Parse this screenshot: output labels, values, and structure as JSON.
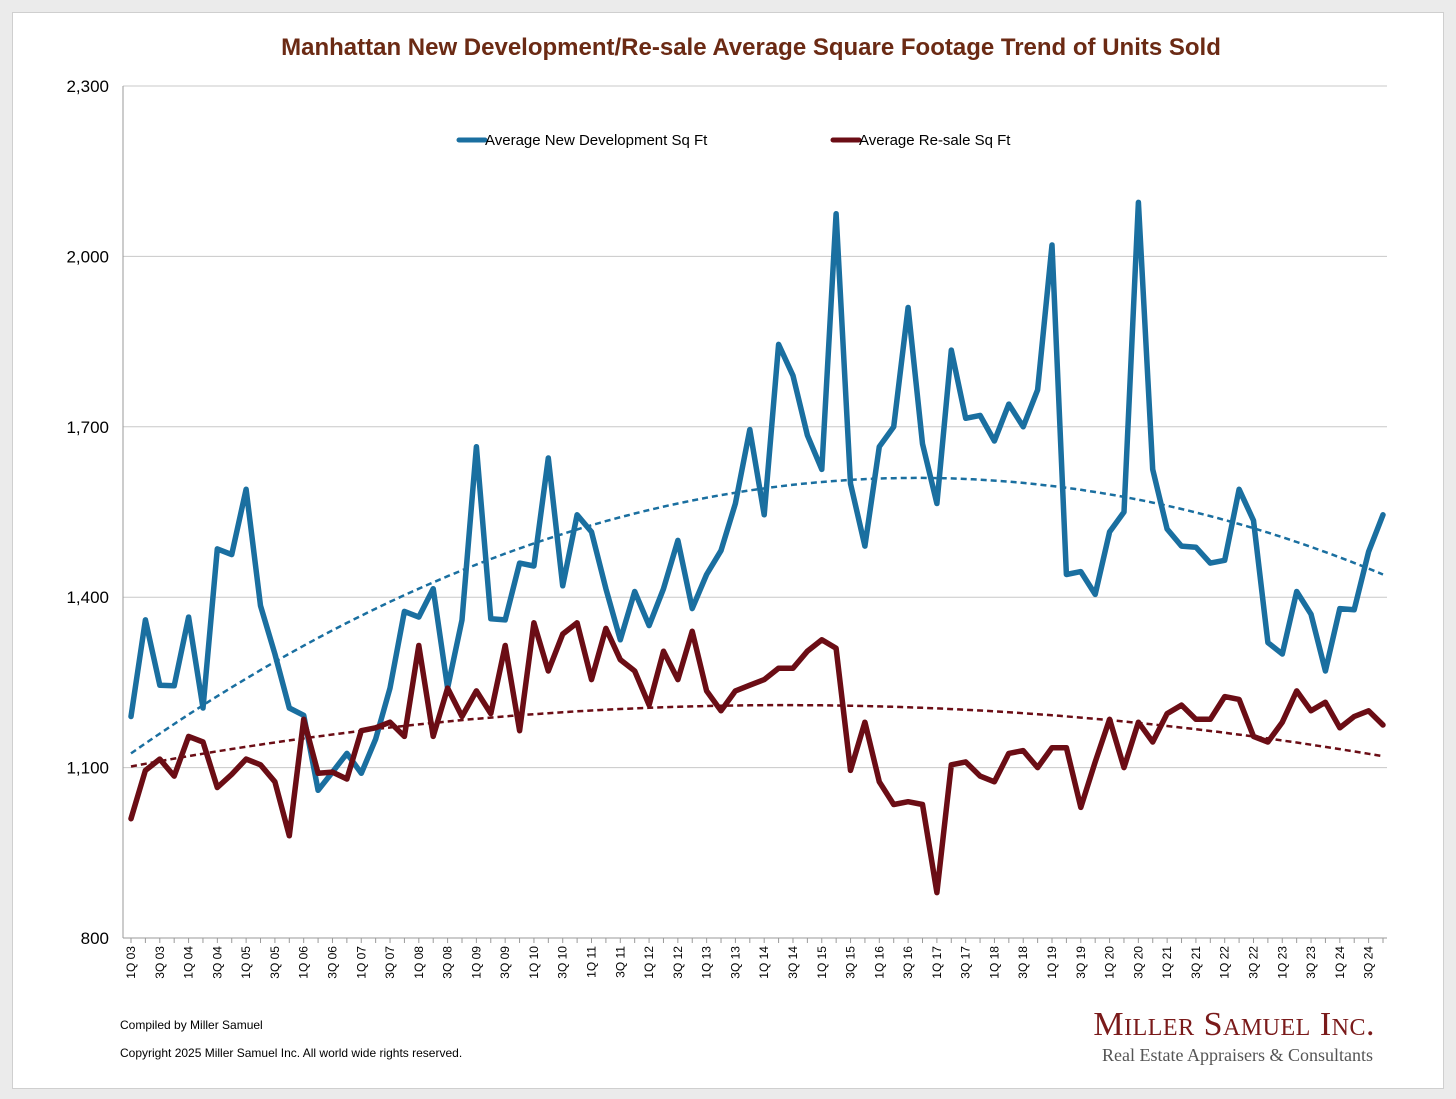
{
  "colors": {
    "new_dev": "#1a6fa0",
    "resale": "#6b0d15",
    "title": "#6b2a14",
    "brand": "#7a1a1a",
    "grid": "#c8c8c8"
  },
  "footer": {
    "compiled": "Compiled by Miller Samuel",
    "copyright": "Copyright 2025 Miller Samuel Inc.  All world wide rights reserved.",
    "brand_name": "Miller Samuel Inc.",
    "brand_tagline": "Real Estate Appraisers & Consultants"
  },
  "chart_data": {
    "type": "line",
    "title": "Manhattan New Development/Re-sale Average Square Footage Trend of Units Sold",
    "xlabel": "",
    "ylabel": "",
    "ylim": [
      800,
      2300
    ],
    "yticks": [
      800,
      1100,
      1400,
      1700,
      2000,
      2300
    ],
    "ytick_labels": [
      "800",
      "1,100",
      "1,400",
      "1,700",
      "2,000",
      "2,300"
    ],
    "grid": "horizontal",
    "legend": "top-center",
    "x": [
      "1Q 03",
      "2Q 03",
      "3Q 03",
      "4Q 03",
      "1Q 04",
      "2Q 04",
      "3Q 04",
      "4Q 04",
      "1Q 05",
      "2Q 05",
      "3Q 05",
      "4Q 05",
      "1Q 06",
      "2Q 06",
      "3Q 06",
      "4Q 06",
      "1Q 07",
      "2Q 07",
      "3Q 07",
      "4Q 07",
      "1Q 08",
      "2Q 08",
      "3Q 08",
      "4Q 08",
      "1Q 09",
      "2Q 09",
      "3Q 09",
      "4Q 09",
      "1Q 10",
      "2Q 10",
      "3Q 10",
      "4Q 10",
      "1Q 11",
      "2Q 11",
      "3Q 11",
      "4Q 11",
      "1Q 12",
      "2Q 12",
      "3Q 12",
      "4Q 12",
      "1Q 13",
      "2Q 13",
      "3Q 13",
      "4Q 13",
      "1Q 14",
      "2Q 14",
      "3Q 14",
      "4Q 14",
      "1Q 15",
      "2Q 15",
      "3Q 15",
      "4Q 15",
      "1Q 16",
      "2Q 16",
      "3Q 16",
      "4Q 16",
      "1Q 17",
      "2Q 17",
      "3Q 17",
      "4Q 17",
      "1Q 18",
      "2Q 18",
      "3Q 18",
      "4Q 18",
      "1Q 19",
      "2Q 19",
      "3Q 19",
      "4Q 19",
      "1Q 20",
      "2Q 20",
      "3Q 20",
      "4Q 20",
      "1Q 21",
      "2Q 21",
      "3Q 21",
      "4Q 21",
      "1Q 22",
      "2Q 22",
      "3Q 22",
      "4Q 22",
      "1Q 23",
      "2Q 23",
      "3Q 23",
      "4Q 23",
      "1Q 24",
      "2Q 24",
      "3Q 24",
      "4Q 24"
    ],
    "tick_labels": [
      "1Q 03",
      "3Q 03",
      "1Q 04",
      "3Q 04",
      "1Q 05",
      "3Q 05",
      "1Q 06",
      "3Q 06",
      "1Q 07",
      "3Q 07",
      "1Q 08",
      "3Q 08",
      "1Q 09",
      "3Q 09",
      "1Q 10",
      "3Q 10",
      "1Q 11",
      "3Q 11",
      "1Q 12",
      "3Q 12",
      "1Q 13",
      "3Q 13",
      "1Q 14",
      "3Q 14",
      "1Q 15",
      "3Q 15",
      "1Q 16",
      "3Q 16",
      "1Q 17",
      "3Q 17",
      "1Q 18",
      "3Q 18",
      "1Q 19",
      "3Q 19",
      "1Q 20",
      "3Q 20",
      "1Q 21",
      "3Q 21",
      "1Q 22",
      "3Q 22",
      "1Q 23",
      "3Q 23",
      "1Q 24",
      "3Q 24"
    ],
    "series": [
      {
        "name": "Average New Development Sq Ft",
        "color": "#1a6fa0",
        "values": [
          1190,
          1360,
          1245,
          1244,
          1365,
          1205,
          1485,
          1475,
          1590,
          1385,
          1300,
          1205,
          1192,
          1060,
          1092,
          1125,
          1090,
          1150,
          1240,
          1375,
          1365,
          1415,
          1240,
          1360,
          1665,
          1362,
          1360,
          1460,
          1455,
          1645,
          1420,
          1545,
          1515,
          1415,
          1325,
          1410,
          1350,
          1415,
          1500,
          1380,
          1440,
          1482,
          1565,
          1695,
          1545,
          1845,
          1790,
          1685,
          1625,
          2075,
          1600,
          1490,
          1665,
          1700,
          1910,
          1670,
          1565,
          1835,
          1715,
          1720,
          1675,
          1740,
          1700,
          1765,
          2020,
          1440,
          1445,
          1405,
          1515,
          1550,
          2095,
          1625,
          1520,
          1490,
          1488,
          1460,
          1465,
          1590,
          1535,
          1320,
          1300,
          1410,
          1370,
          1270,
          1380,
          1378,
          1480,
          1545
        ]
      },
      {
        "name": "Average Re-sale Sq Ft",
        "color": "#6b0d15",
        "values": [
          1010,
          1095,
          1115,
          1085,
          1155,
          1145,
          1065,
          1088,
          1115,
          1105,
          1075,
          980,
          1185,
          1090,
          1092,
          1080,
          1165,
          1170,
          1180,
          1155,
          1315,
          1155,
          1240,
          1190,
          1235,
          1195,
          1315,
          1165,
          1355,
          1270,
          1335,
          1355,
          1255,
          1345,
          1290,
          1270,
          1210,
          1305,
          1255,
          1340,
          1235,
          1200,
          1235,
          1245,
          1255,
          1275,
          1275,
          1305,
          1325,
          1310,
          1095,
          1180,
          1075,
          1035,
          1040,
          1035,
          880,
          1105,
          1110,
          1085,
          1075,
          1125,
          1130,
          1100,
          1135,
          1135,
          1030,
          1110,
          1185,
          1100,
          1180,
          1145,
          1195,
          1210,
          1185,
          1185,
          1225,
          1220,
          1155,
          1145,
          1180,
          1235,
          1200,
          1215,
          1170,
          1190,
          1200,
          1175
        ]
      }
    ],
    "trendlines": [
      {
        "series": "Average New Development Sq Ft",
        "type": "quadratic",
        "color": "#1a6fa0",
        "values_at": {
          "start": 1125,
          "peak": 1610,
          "end": 1440
        }
      },
      {
        "series": "Average Re-sale Sq Ft",
        "type": "quadratic",
        "color": "#6b0d15",
        "values_at": {
          "start": 1102,
          "peak": 1210,
          "end": 1120
        }
      }
    ]
  }
}
